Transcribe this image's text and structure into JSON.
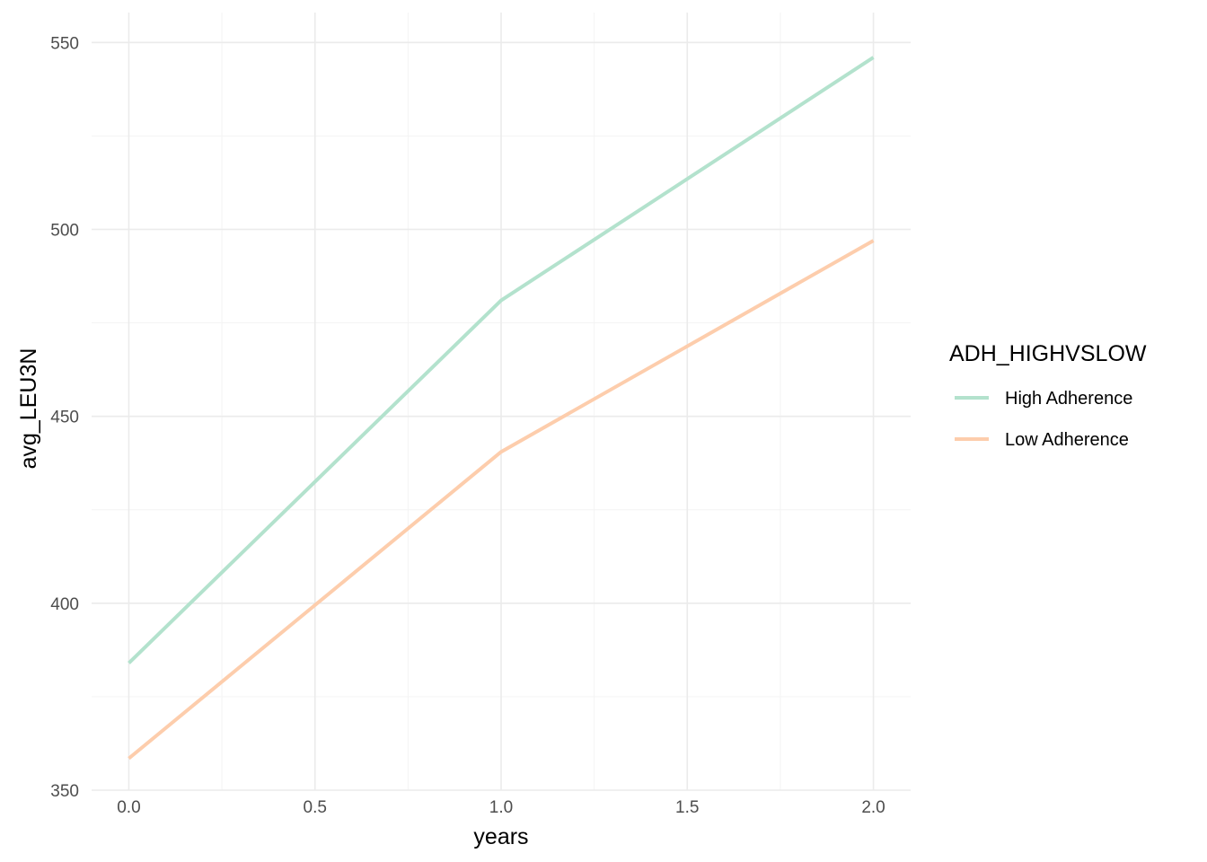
{
  "chart_data": {
    "type": "line",
    "title": "",
    "xlabel": "years",
    "ylabel": "avg_LEU3N",
    "x": [
      0,
      1,
      2
    ],
    "xlim": [
      -0.1,
      2.1
    ],
    "ylim": [
      350,
      558
    ],
    "x_ticks": [
      0,
      0.5,
      1,
      1.5,
      2
    ],
    "x_tick_labels": [
      "0.0",
      "0.5",
      "1.0",
      "1.5",
      "2.0"
    ],
    "y_ticks": [
      350,
      400,
      450,
      500,
      550
    ],
    "y_tick_labels": [
      "350",
      "400",
      "450",
      "500",
      "550"
    ],
    "grid": true,
    "legend": {
      "title": "ADH_HIGHVSLOW",
      "position": "right"
    },
    "series": [
      {
        "name": "High Adherence",
        "color": "#b3e2cd",
        "values": [
          384,
          481,
          546
        ]
      },
      {
        "name": "Low Adherence",
        "color": "#fdcdac",
        "values": [
          358.5,
          440.5,
          497
        ]
      }
    ]
  }
}
